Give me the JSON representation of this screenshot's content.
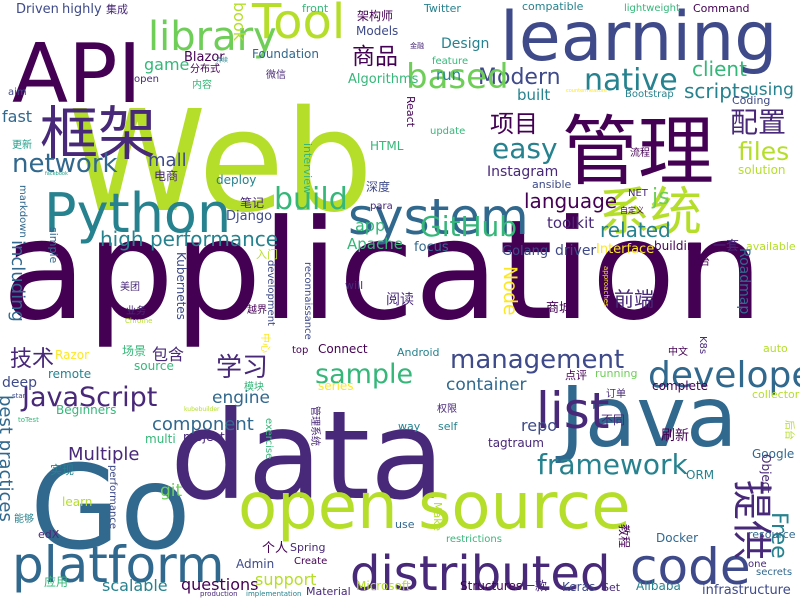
{
  "palette": {
    "dark_purple": "#440154",
    "indigo": "#482878",
    "blue": "#3e4a89",
    "steel": "#31688e",
    "teal": "#26828e",
    "green_teal": "#1f9e89",
    "green": "#35b779",
    "light_green": "#6ece58",
    "lime": "#b5de2b",
    "yellow": "#fde725"
  },
  "words": [
    {
      "text": "application",
      "color": "dark_purple"
    },
    {
      "text": "Web",
      "color": "lime"
    },
    {
      "text": "data",
      "color": "indigo"
    },
    {
      "text": "learning",
      "color": "blue"
    },
    {
      "text": "Go",
      "color": "steel"
    },
    {
      "text": "Java",
      "color": "steel"
    },
    {
      "text": "open source",
      "color": "lime"
    },
    {
      "text": "API",
      "color": "dark_purple"
    },
    {
      "text": "管理",
      "color": "dark_purple"
    },
    {
      "text": "Python",
      "color": "teal"
    },
    {
      "text": "system",
      "color": "steel"
    },
    {
      "text": "distributed",
      "color": "indigo"
    },
    {
      "text": "platform",
      "color": "steel"
    },
    {
      "text": "code",
      "color": "blue"
    },
    {
      "text": "系统",
      "color": "lime"
    },
    {
      "text": "框架",
      "color": "indigo"
    },
    {
      "text": "Tool",
      "color": "lime"
    },
    {
      "text": "list",
      "color": "indigo"
    },
    {
      "text": "developer",
      "color": "steel"
    },
    {
      "text": "library",
      "color": "light_green"
    },
    {
      "text": "JavaScript",
      "color": "indigo"
    },
    {
      "text": "management",
      "color": "blue"
    },
    {
      "text": "framework",
      "color": "teal"
    },
    {
      "text": "native",
      "color": "teal"
    },
    {
      "text": "Modern",
      "color": "blue"
    },
    {
      "text": "based",
      "color": "light_green"
    },
    {
      "text": "easy",
      "color": "teal"
    },
    {
      "text": "network",
      "color": "steel"
    },
    {
      "text": "sample",
      "color": "green"
    },
    {
      "text": "build",
      "color": "green"
    },
    {
      "text": "GitHub",
      "color": "green"
    },
    {
      "text": "high performance",
      "color": "teal"
    },
    {
      "text": "提供",
      "color": "indigo"
    },
    {
      "text": "Free",
      "color": "teal"
    },
    {
      "text": "files",
      "color": "lime"
    },
    {
      "text": "配置",
      "color": "indigo"
    },
    {
      "text": "项目",
      "color": "dark_purple"
    },
    {
      "text": "商品",
      "color": "dark_purple"
    },
    {
      "text": "学习",
      "color": "indigo"
    },
    {
      "text": "技术",
      "color": "indigo"
    },
    {
      "text": "前端",
      "color": "indigo"
    },
    {
      "text": "language",
      "color": "dark_purple"
    },
    {
      "text": "related",
      "color": "teal"
    },
    {
      "text": "js",
      "color": "light_green"
    },
    {
      "text": "client",
      "color": "green"
    },
    {
      "text": "scripts",
      "color": "teal"
    },
    {
      "text": "using",
      "color": "teal"
    },
    {
      "text": "Node",
      "color": "yellow"
    },
    {
      "text": "mall",
      "color": "blue"
    },
    {
      "text": "book",
      "color": "lime"
    },
    {
      "text": "game",
      "color": "green"
    },
    {
      "text": "container",
      "color": "steel"
    },
    {
      "text": "component",
      "color": "steel"
    },
    {
      "text": "engine",
      "color": "steel"
    },
    {
      "text": "Multiple",
      "color": "indigo"
    },
    {
      "text": "questions",
      "color": "dark_purple"
    },
    {
      "text": "support",
      "color": "lime"
    },
    {
      "text": "scalable",
      "color": "teal"
    },
    {
      "text": "Apache",
      "color": "green"
    },
    {
      "text": "focus",
      "color": "steel"
    },
    {
      "text": "toolkit",
      "color": "indigo"
    },
    {
      "text": "repo",
      "color": "blue"
    },
    {
      "text": "Golang",
      "color": "blue"
    },
    {
      "text": "driver",
      "color": "blue"
    },
    {
      "text": "Interface",
      "color": "yellow"
    },
    {
      "text": "building",
      "color": "dark_purple"
    },
    {
      "text": "一套",
      "color": "indigo"
    },
    {
      "text": "available",
      "color": "lime"
    },
    {
      "text": "including",
      "color": "steel"
    },
    {
      "text": "best practices",
      "color": "steel"
    },
    {
      "text": "deep",
      "color": "blue"
    },
    {
      "text": "fast",
      "color": "steel"
    },
    {
      "text": "git",
      "color": "light_green"
    },
    {
      "text": "Instagram",
      "color": "indigo"
    },
    {
      "text": "app",
      "color": "green"
    },
    {
      "text": "run",
      "color": "teal"
    },
    {
      "text": "built",
      "color": "teal"
    },
    {
      "text": "Design",
      "color": "teal"
    },
    {
      "text": "Algorithms",
      "color": "green"
    },
    {
      "text": "Foundation",
      "color": "steel"
    },
    {
      "text": "Blazor",
      "color": "dark_purple"
    },
    {
      "text": "Models",
      "color": "blue"
    },
    {
      "text": "架构师",
      "color": "dark_purple"
    },
    {
      "text": "Driven",
      "color": "blue"
    },
    {
      "text": "highly",
      "color": "blue"
    },
    {
      "text": "集成",
      "color": "indigo"
    },
    {
      "text": "front",
      "color": "green"
    },
    {
      "text": "Twitter",
      "color": "teal"
    },
    {
      "text": "compatible",
      "color": "teal"
    },
    {
      "text": "lightweight",
      "color": "green"
    },
    {
      "text": "Command",
      "color": "dark_purple"
    },
    {
      "text": "feature",
      "color": "green"
    },
    {
      "text": "Bootstrap",
      "color": "teal"
    },
    {
      "text": "Coding",
      "color": "blue"
    },
    {
      "text": "React",
      "color": "dark_purple"
    },
    {
      "text": "update",
      "color": "green"
    },
    {
      "text": "HTML",
      "color": "green"
    },
    {
      "text": "流程",
      "color": "dark_purple"
    },
    {
      "text": "NET",
      "color": "indigo"
    },
    {
      "text": "solution",
      "color": "lime"
    },
    {
      "text": "ansible",
      "color": "blue"
    },
    {
      "text": "自定义",
      "color": "dark_purple"
    },
    {
      "text": "para",
      "color": "indigo"
    },
    {
      "text": "深度",
      "color": "blue"
    },
    {
      "text": "笔记",
      "color": "indigo"
    },
    {
      "text": "Django",
      "color": "blue"
    },
    {
      "text": "deploy",
      "color": "teal"
    },
    {
      "text": "电商",
      "color": "indigo"
    },
    {
      "text": "实现",
      "color": "teal"
    },
    {
      "text": "更新",
      "color": "green_teal"
    },
    {
      "text": "aim",
      "color": "blue"
    },
    {
      "text": "open",
      "color": "indigo"
    },
    {
      "text": "分布式",
      "color": "dark_purple"
    },
    {
      "text": "内容",
      "color": "green"
    },
    {
      "text": "微信",
      "color": "indigo"
    },
    {
      "text": "interview",
      "color": "green"
    },
    {
      "text": "markdown",
      "color": "steel"
    },
    {
      "text": "simple",
      "color": "steel"
    },
    {
      "text": "Kubernetes",
      "color": "blue"
    },
    {
      "text": "业务",
      "color": "indigo"
    },
    {
      "text": "美团",
      "color": "indigo"
    },
    {
      "text": "入门",
      "color": "lime"
    },
    {
      "text": "越界",
      "color": "dark_purple"
    },
    {
      "text": "development",
      "color": "blue"
    },
    {
      "text": "reconnaissance",
      "color": "blue"
    },
    {
      "text": "will",
      "color": "indigo"
    },
    {
      "text": "阅读",
      "color": "indigo"
    },
    {
      "text": "商城",
      "color": "dark_purple"
    },
    {
      "text": "Roadmap",
      "color": "steel"
    },
    {
      "text": "前台",
      "color": "dark_purple"
    },
    {
      "text": "中心",
      "color": "yellow"
    },
    {
      "text": "场景",
      "color": "green"
    },
    {
      "text": "Razor",
      "color": "yellow"
    },
    {
      "text": "包含",
      "color": "indigo"
    },
    {
      "text": "top",
      "color": "dark_purple"
    },
    {
      "text": "Connect",
      "color": "dark_purple"
    },
    {
      "text": "Android",
      "color": "teal"
    },
    {
      "text": "中文",
      "color": "dark_purple"
    },
    {
      "text": "K8s",
      "color": "indigo"
    },
    {
      "text": "auto",
      "color": "lime"
    },
    {
      "text": "remote",
      "color": "teal"
    },
    {
      "text": "source",
      "color": "green"
    },
    {
      "text": "模块",
      "color": "green"
    },
    {
      "text": "series",
      "color": "yellow"
    },
    {
      "text": "running",
      "color": "light_green"
    },
    {
      "text": "点评",
      "color": "dark_purple"
    },
    {
      "text": "collector",
      "color": "lime"
    },
    {
      "text": "订单",
      "color": "indigo"
    },
    {
      "text": "complete",
      "color": "dark_purple"
    },
    {
      "text": "Beginners",
      "color": "green"
    },
    {
      "text": "管理系统",
      "color": "indigo"
    },
    {
      "text": "权限",
      "color": "indigo"
    },
    {
      "text": "exercise",
      "color": "green"
    },
    {
      "text": "self",
      "color": "teal"
    },
    {
      "text": "way",
      "color": "teal"
    },
    {
      "text": "不同",
      "color": "indigo"
    },
    {
      "text": "Google",
      "color": "steel"
    },
    {
      "text": "后台",
      "color": "lime"
    },
    {
      "text": "tagtraum",
      "color": "indigo"
    },
    {
      "text": "刷新",
      "color": "dark_purple"
    },
    {
      "text": "Object",
      "color": "indigo"
    },
    {
      "text": "multi",
      "color": "green"
    },
    {
      "text": "project",
      "color": "indigo"
    },
    {
      "text": "ORM",
      "color": "teal"
    },
    {
      "text": "learn",
      "color": "lime"
    },
    {
      "text": "Make",
      "color": "lime"
    },
    {
      "text": "Docker",
      "color": "steel"
    },
    {
      "text": "edX",
      "color": "indigo"
    },
    {
      "text": "能够",
      "color": "teal"
    },
    {
      "text": "Spring",
      "color": "indigo"
    },
    {
      "text": "use",
      "color": "steel"
    },
    {
      "text": "Admin",
      "color": "blue"
    },
    {
      "text": "个人",
      "color": "dark_purple"
    },
    {
      "text": "Create",
      "color": "dark_purple"
    },
    {
      "text": "restrictions",
      "color": "green"
    },
    {
      "text": "教程",
      "color": "dark_purple"
    },
    {
      "text": "resource",
      "color": "steel"
    },
    {
      "text": "one",
      "color": "indigo"
    },
    {
      "text": "secrets",
      "color": "steel"
    },
    {
      "text": "应用",
      "color": "green"
    },
    {
      "text": "Material",
      "color": "indigo"
    },
    {
      "text": "Microsoft",
      "color": "lime"
    },
    {
      "text": "Structures",
      "color": "dark_purple"
    },
    {
      "text": "一款",
      "color": "indigo"
    },
    {
      "text": "Keras",
      "color": "blue"
    },
    {
      "text": "Set",
      "color": "indigo"
    },
    {
      "text": "Alibaba",
      "color": "teal"
    },
    {
      "text": "infrastructure",
      "color": "blue"
    },
    {
      "text": "production",
      "color": "indigo"
    },
    {
      "text": "implementation",
      "color": "teal"
    },
    {
      "text": "toTest",
      "color": "green"
    },
    {
      "text": "star",
      "color": "blue"
    },
    {
      "text": "performance",
      "color": "blue"
    },
    {
      "text": "Chrome",
      "color": "lime"
    },
    {
      "text": "kubebuilder",
      "color": "lime"
    },
    {
      "text": "approaches",
      "color": "yellow"
    },
    {
      "text": "countermeasure",
      "color": "yellow"
    },
    {
      "text": "金融",
      "color": "indigo"
    },
    {
      "text": "持续",
      "color": "teal"
    },
    {
      "text": "facebook",
      "color": "green_teal"
    }
  ]
}
